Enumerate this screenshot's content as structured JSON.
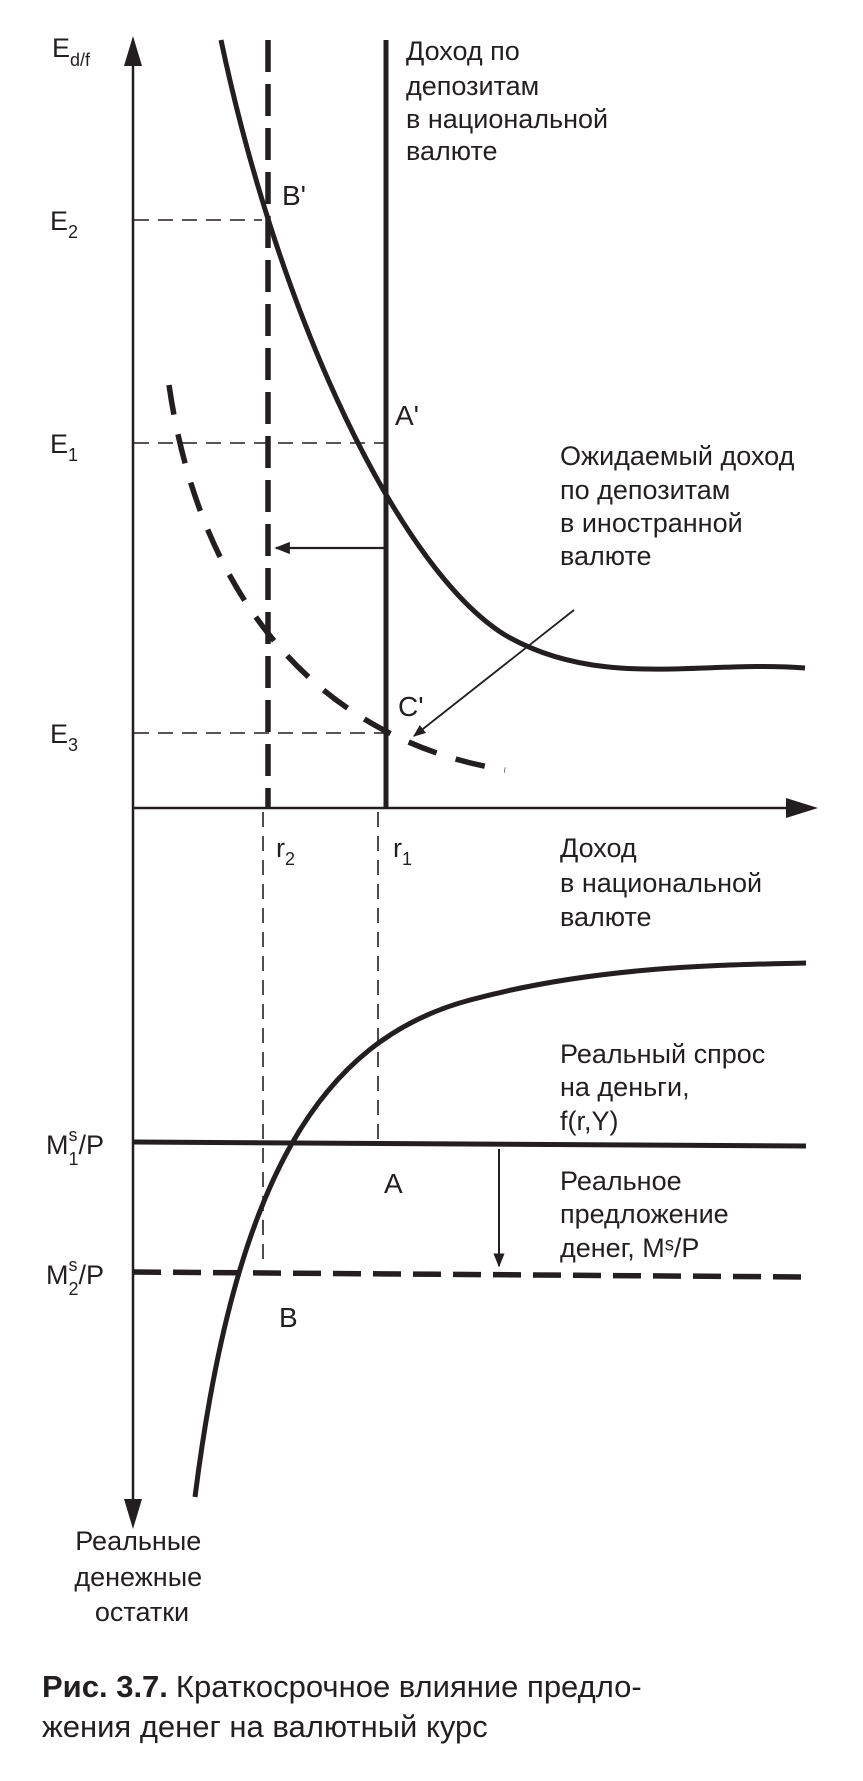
{
  "y_axis_top": {
    "base": "E",
    "sub": "d/f"
  },
  "y_axis_bottom": [
    "Реальные",
    "денежные",
    "остатки"
  ],
  "x_axis": [
    "Доход",
    "в национальной",
    "валюте"
  ],
  "levels": {
    "e2": {
      "base": "E",
      "sub": "2"
    },
    "e1": {
      "base": "E",
      "sub": "1"
    },
    "e3": {
      "base": "E",
      "sub": "3"
    },
    "r2": {
      "base": "r",
      "sub": "2"
    },
    "r1": {
      "base": "r",
      "sub": "1"
    },
    "m1": {
      "base": "M",
      "sup": "s",
      "sub": "1",
      "rest": "/P"
    },
    "m2": {
      "base": "M",
      "sup": "s",
      "sub": "2",
      "rest": "/P"
    }
  },
  "points": {
    "b_prime": "B'",
    "a_prime": "A'",
    "c_prime": "C'",
    "a": "A",
    "b": "B"
  },
  "curves": {
    "domestic_return": [
      "Доход по",
      "депозитам",
      "в национальной",
      "валюте"
    ],
    "foreign_return": [
      "Ожидаемый доход",
      "по депозитам",
      "в иностранной",
      "валюте"
    ],
    "money_demand": [
      "Реальный спрос",
      "на деньги,",
      "f(r,Y)"
    ],
    "money_supply": [
      "Реальное",
      "предложение",
      "денег, Mˢ/P"
    ]
  },
  "caption": {
    "label": "Рис. 3.7.",
    "line1": "Краткосрочное влияние предло-",
    "line2": "жения денег на валютный курс"
  },
  "colors": {
    "ink": "#231f20",
    "background": "#ffffff"
  }
}
